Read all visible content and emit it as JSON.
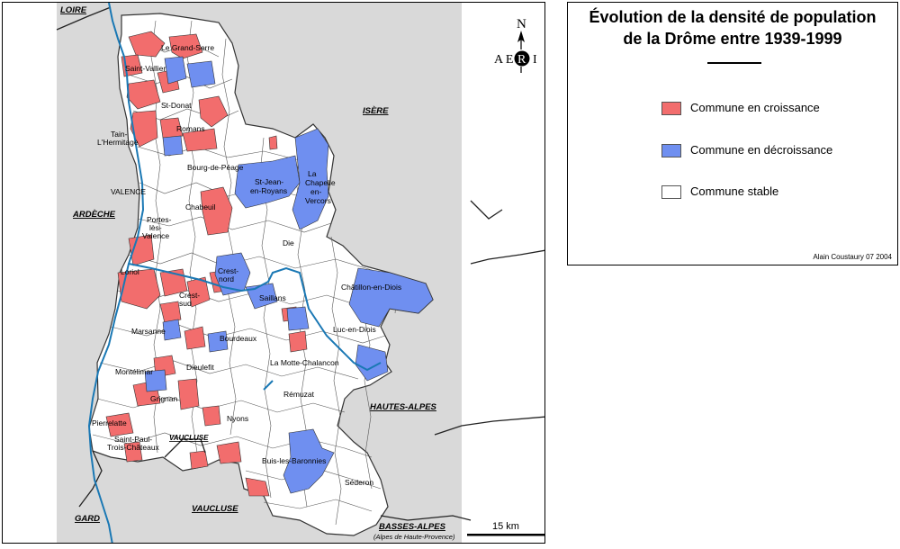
{
  "legend": {
    "title_line1": "Évolution de la densité de population",
    "title_line2": "de la Drôme entre 1939-1999",
    "items": [
      {
        "label": "Commune en croissance",
        "color": "#f26d6d"
      },
      {
        "label": "Commune en décroissance",
        "color": "#6f8ff0"
      },
      {
        "label": "Commune stable",
        "color": "#ffffff"
      }
    ],
    "credit": "Alain Coustaury 07 2004"
  },
  "map": {
    "colors": {
      "outside": "#d9d9d9",
      "stable": "#ffffff",
      "growth": "#f26d6d",
      "decline": "#6f8ff0",
      "river": "#1a78b4",
      "border": "#222222"
    },
    "north": {
      "letter": "N",
      "logo_left": "A E",
      "logo_mid": "R",
      "logo_right": "I"
    },
    "scale_label": "15 km",
    "regions": {
      "loire": "LOIRE",
      "isere": "ISÈRE",
      "ardeche": "ARDÈCHE",
      "hautes_alpes": "HAUTES-ALPES",
      "vaucluse_south": "VAUCLUSE",
      "vaucluse_enclave": "VAUCLUSE",
      "gard": "GARD",
      "basses_alpes": "BASSES-ALPES",
      "basses_alpes_sub": "(Alpes de Haute-Provence)"
    },
    "places": {
      "le_grand_serre": "Le Grand-Serre",
      "saint_vallier": "Saint-Vallier",
      "st_donat": "St-Donat",
      "tain_line1": "Tain-",
      "tain_line2": "L'Hermitage",
      "romans": "Romans",
      "bourg_de_peage": "Bourg-de-Péage",
      "valence": "VALENCE",
      "st_jean_line1": "St-Jean-",
      "st_jean_line2": "en-Royans",
      "chapelle_line1": "La",
      "chapelle_line2": "Chapelle",
      "chapelle_line3": "en-",
      "chapelle_line4": "Vercors",
      "chabeuil": "Chabeuil",
      "portes_line1": "Portes-",
      "portes_line2": "lès-",
      "portes_line3": "Valence",
      "die": "Die",
      "loriol": "Loriol",
      "crest_nord_line1": "Crest-",
      "crest_nord_line2": "nord",
      "crest_sud_line1": "Crest-",
      "crest_sud_line2": "sud",
      "saillans": "Saillans",
      "chatillon": "Châtillon-en-Diois",
      "marsanne": "Marsanne",
      "bourdeaux": "Bourdeaux",
      "luc_en_diois": "Luc-en-Diois",
      "montelimar": "Montélimar",
      "dieulefit": "Dieulefit",
      "la_motte": "La Motte-Chalancon",
      "grignan": "Grignan",
      "remuzat": "Rémuzat",
      "nyons": "Nyons",
      "pierrelatte": "Pierrelatte",
      "st_paul_line1": "Saint-Paul-",
      "st_paul_line2": "Trois-Châteaux",
      "buis": "Buis-les-Baronnies",
      "sederon": "Séderon"
    }
  }
}
